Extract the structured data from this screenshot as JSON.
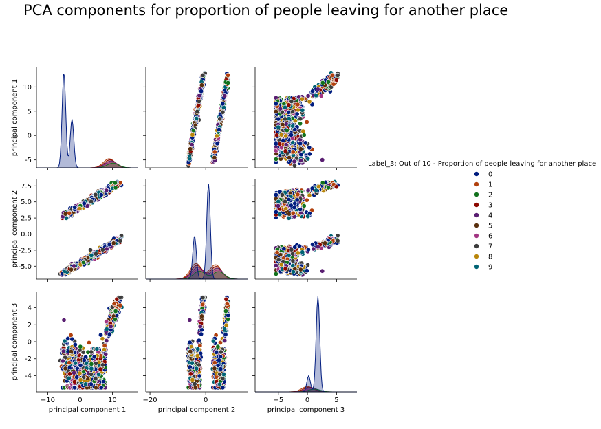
{
  "title": "PCA components for proportion of people leaving for another place",
  "legend": {
    "title": "Label_3: Out of 10 - Proportion of people leaving for another place",
    "placement": "right",
    "items": [
      {
        "label": "0",
        "color": "#001c7f"
      },
      {
        "label": "1",
        "color": "#b1400d"
      },
      {
        "label": "2",
        "color": "#12711c"
      },
      {
        "label": "3",
        "color": "#8c0800"
      },
      {
        "label": "4",
        "color": "#591e71"
      },
      {
        "label": "5",
        "color": "#592f0d"
      },
      {
        "label": "6",
        "color": "#a23582"
      },
      {
        "label": "7",
        "color": "#3c3c3c"
      },
      {
        "label": "8",
        "color": "#b8850a"
      },
      {
        "label": "9",
        "color": "#006374"
      }
    ]
  },
  "chart_data": {
    "type": "scatter",
    "subtype": "pairplot",
    "variables": [
      "principal component 1",
      "principal component 2",
      "principal component 3"
    ],
    "ranges": {
      "principal component 1": [
        -13.5,
        18
      ],
      "principal component 2": [
        -21.5,
        15
      ],
      "principal component 3": [
        -9,
        8.5
      ]
    },
    "ticks": {
      "principal component 1": [
        -10,
        0,
        10
      ],
      "principal component 2": [
        -20,
        0
      ],
      "principal component 3": [
        -5,
        0,
        5
      ]
    },
    "row_ranges": {
      "principal component 1": [
        -6.6,
        14
      ],
      "principal component 2": [
        -7,
        8.6
      ],
      "principal component 3": [
        -5.9,
        5.9
      ]
    },
    "row_ticks": {
      "principal component 1": [
        -5,
        0,
        5,
        10
      ],
      "principal component 2": [
        -5.0,
        -2.5,
        0.0,
        2.5,
        5.0,
        7.5
      ],
      "principal component 3": [
        -4,
        -2,
        0,
        2,
        4
      ]
    },
    "hue_variable": "Label_3: Out of 10 - Proportion of people leaving for another place",
    "hue_levels": [
      "0",
      "1",
      "2",
      "3",
      "4",
      "5",
      "6",
      "7",
      "8",
      "9"
    ],
    "clusters": [
      {
        "pc1": [
          -5,
          12
        ],
        "pc2": [
          -4.5,
          8
        ],
        "pc3": [
          -3.5,
          5
        ]
      },
      {
        "pc1": [
          -5,
          12
        ],
        "pc2": [
          3,
          -6
        ],
        "pc3": [
          -3.5,
          5
        ]
      }
    ],
    "diagonal": {
      "principal component 1": {
        "class0_peaks": [
          {
            "x": -5,
            "density": 12.8
          },
          {
            "x": -2.5,
            "density": 6.5
          }
        ],
        "others_peak": {
          "x": 9,
          "density": 1.2
        }
      },
      "principal component 2": {
        "class0_peaks": [
          {
            "x": -4,
            "density": 3.6
          },
          {
            "x": 1,
            "density": 8.0
          }
        ],
        "others_peaks": [
          {
            "x": -3.5,
            "density": 1.3
          },
          {
            "x": 3.5,
            "density": 1.2
          }
        ]
      },
      "principal component 3": {
        "class0_peaks": [
          {
            "x": 0.2,
            "density": 0.9
          },
          {
            "x": 1.8,
            "density": 5.4
          }
        ],
        "others_peak": {
          "x": 0,
          "density": 0.3
        }
      }
    }
  }
}
